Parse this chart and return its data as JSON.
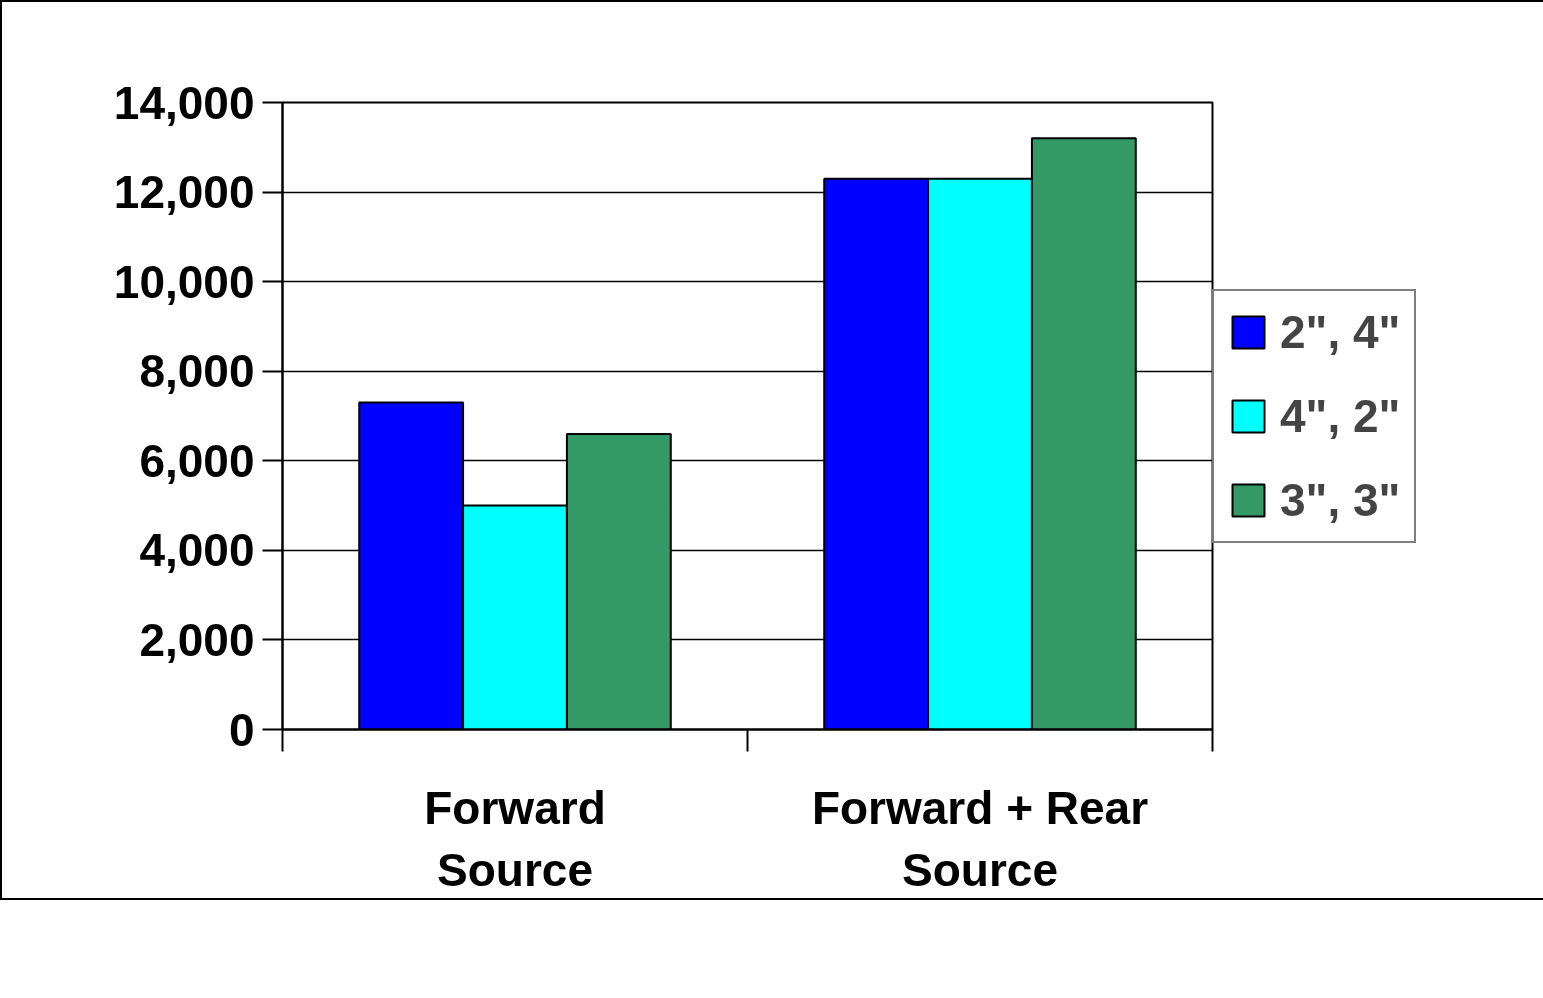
{
  "chart_data": {
    "type": "bar",
    "categories": [
      "Forward Source",
      "Forward + Rear Source"
    ],
    "series": [
      {
        "name": "2\", 4\"",
        "color": "#0000ff",
        "values": [
          7300,
          12300
        ]
      },
      {
        "name": "4\", 2\"",
        "color": "#00ffff",
        "values": [
          5000,
          12300
        ]
      },
      {
        "name": "3\", 3\"",
        "color": "#339966",
        "values": [
          6600,
          13200
        ]
      }
    ],
    "ylim": [
      0,
      14000
    ],
    "yticks": [
      0,
      {
        "value": 2000,
        "label": "2,000"
      },
      {
        "value": 4000,
        "label": "4,000"
      },
      {
        "value": 6000,
        "label": "6,000"
      },
      {
        "value": 8000,
        "label": "8,000"
      },
      {
        "value": 10000,
        "label": "10,000"
      },
      {
        "value": 12000,
        "label": "12,000"
      },
      {
        "value": 14000,
        "label": "14,000"
      }
    ],
    "grid": "y",
    "legend": "right"
  }
}
